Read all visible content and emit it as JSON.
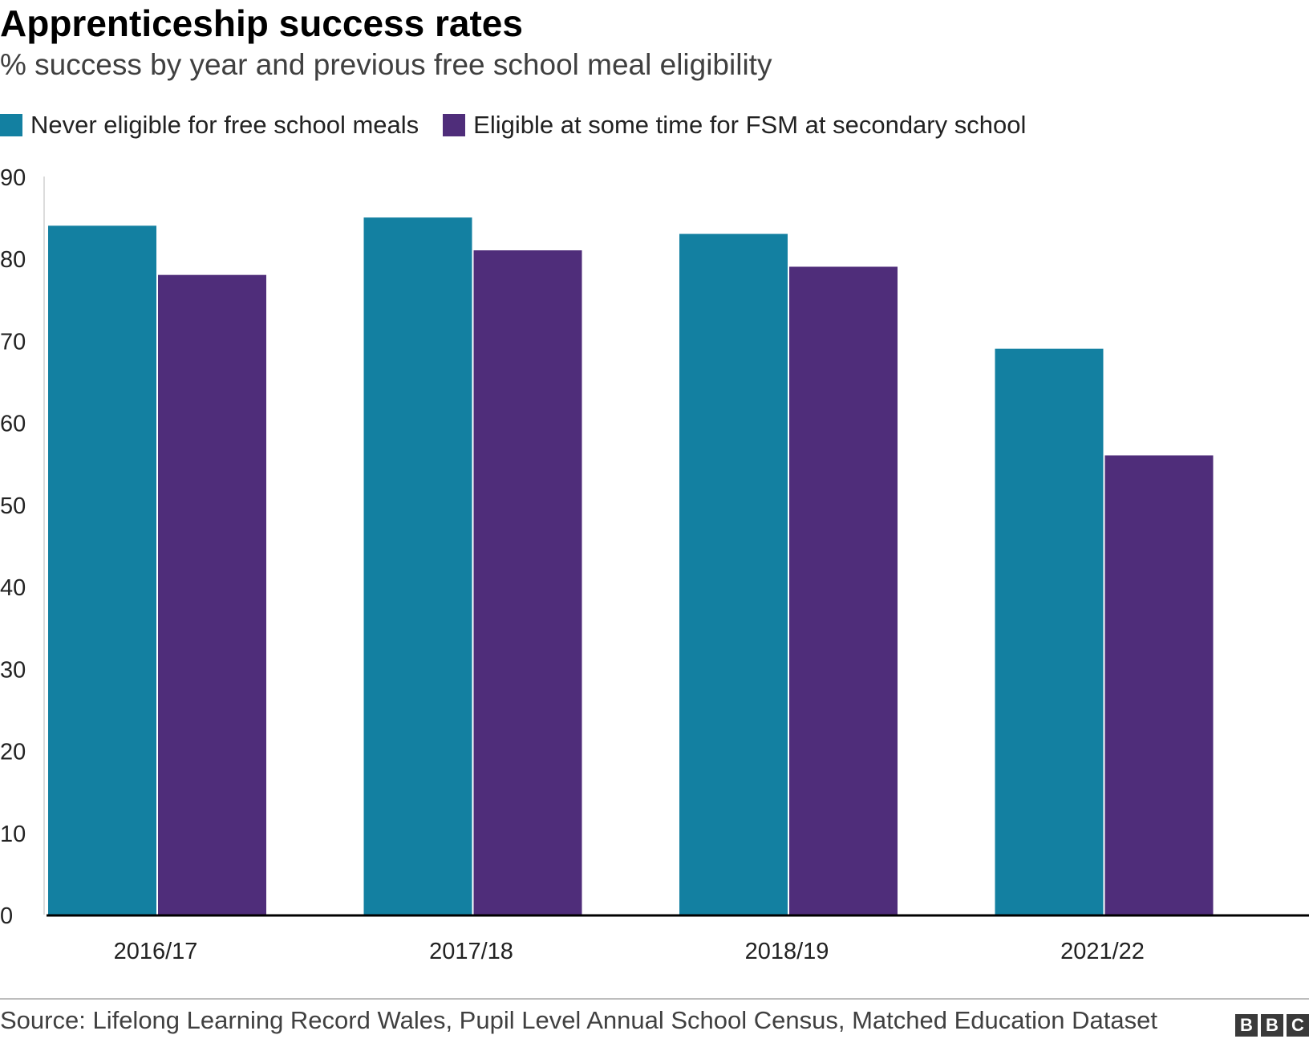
{
  "chart_data": {
    "type": "bar",
    "title": "Apprenticeship success rates",
    "subtitle": "% success by year and previous free school meal eligibility",
    "categories": [
      "2016/17",
      "2017/18",
      "2018/19",
      "2021/22"
    ],
    "series": [
      {
        "name": "Never eligible for free school meals",
        "color": "#1380A1",
        "values": [
          84,
          85,
          83,
          69
        ]
      },
      {
        "name": "Eligible at some time for FSM at secondary school",
        "color": "#4F2D7A",
        "values": [
          78,
          81,
          79,
          56
        ]
      }
    ],
    "ylim": [
      0,
      90
    ],
    "yticks": [
      "0",
      "10",
      "20",
      "30",
      "40",
      "50",
      "60",
      "70",
      "80",
      "90"
    ],
    "xlabel": "",
    "ylabel": "",
    "legend_position": "top-left",
    "grid": false
  },
  "footer": {
    "source": "Source: Lifelong Learning Record Wales, Pupil Level Annual School Census, Matched Education Dataset",
    "brand": [
      "B",
      "B",
      "C"
    ]
  }
}
